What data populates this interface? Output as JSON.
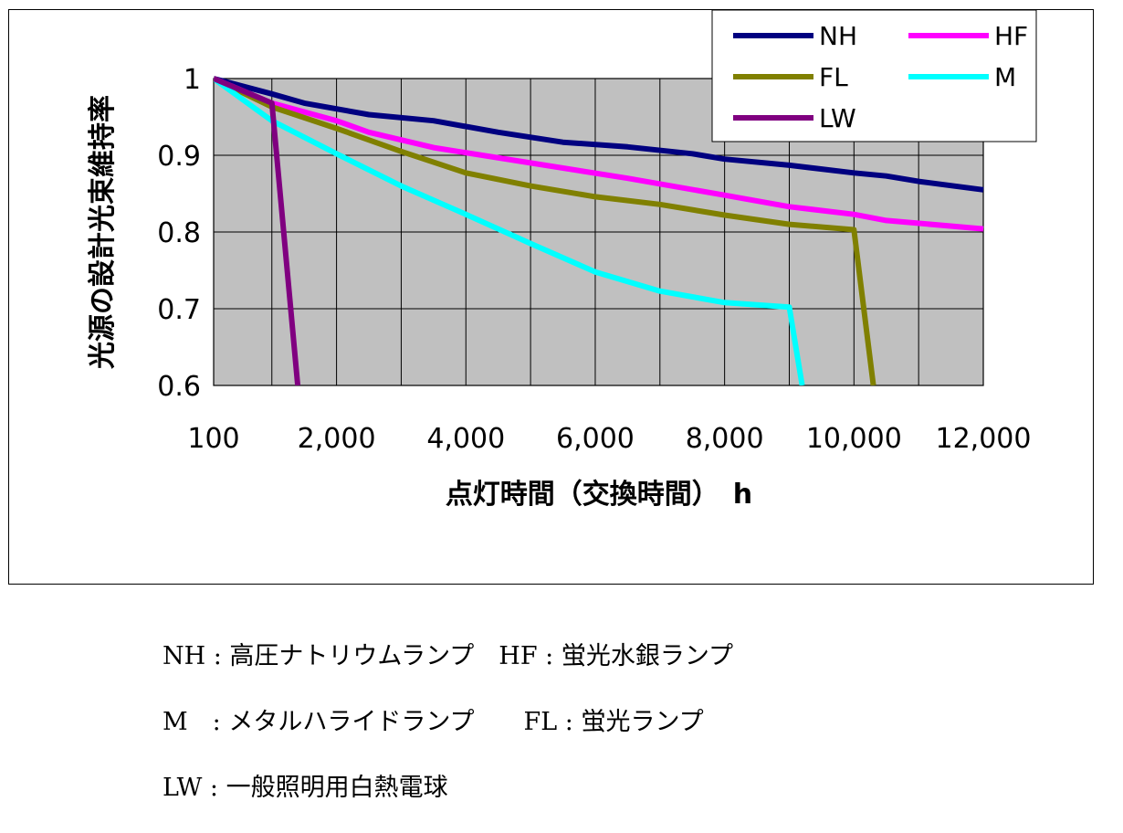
{
  "chart_data": {
    "type": "line",
    "title": "",
    "xlabel": "点灯時間（交換時間）　h",
    "ylabel": "光源の設計光束維持率",
    "xlim": [
      100,
      12000
    ],
    "ylim": [
      0.6,
      1.0
    ],
    "x_ticks": [
      100,
      2000,
      4000,
      6000,
      8000,
      10000,
      12000
    ],
    "x_tick_labels": [
      "100",
      "2,000",
      "4,000",
      "6,000",
      "8,000",
      "10,000",
      "12,000"
    ],
    "y_ticks": [
      0.6,
      0.7,
      0.8,
      0.9,
      1.0
    ],
    "y_tick_labels": [
      "0.6",
      "0.7",
      "0.8",
      "0.9",
      "1"
    ],
    "grid": true,
    "legend_position": "top-right",
    "series": [
      {
        "name": "NH",
        "color": "#000080",
        "x": [
          100,
          1000,
          1500,
          2500,
          3500,
          4500,
          5500,
          6500,
          7500,
          8000,
          9000,
          10000,
          10500,
          11000,
          12000
        ],
        "y": [
          1.0,
          0.98,
          0.968,
          0.953,
          0.945,
          0.93,
          0.917,
          0.911,
          0.902,
          0.895,
          0.887,
          0.877,
          0.873,
          0.866,
          0.855
        ]
      },
      {
        "name": "HF",
        "color": "#FF00FF",
        "x": [
          100,
          1000,
          2000,
          2500,
          3500,
          5000,
          6500,
          8000,
          9000,
          10000,
          10500,
          12000
        ],
        "y": [
          1.0,
          0.968,
          0.945,
          0.93,
          0.91,
          0.89,
          0.87,
          0.848,
          0.833,
          0.823,
          0.815,
          0.804
        ]
      },
      {
        "name": "FL",
        "color": "#808000",
        "x": [
          100,
          1000,
          2000,
          3000,
          4000,
          5000,
          6000,
          7000,
          8000,
          9000,
          10000,
          10300
        ],
        "y": [
          1.0,
          0.963,
          0.935,
          0.905,
          0.877,
          0.86,
          0.846,
          0.836,
          0.822,
          0.81,
          0.803,
          0.6
        ]
      },
      {
        "name": "M",
        "color": "#00FFFF",
        "x": [
          100,
          1000,
          2000,
          3000,
          4000,
          5000,
          6000,
          7000,
          8000,
          9000,
          9200
        ],
        "y": [
          1.0,
          0.945,
          0.902,
          0.86,
          0.823,
          0.785,
          0.748,
          0.723,
          0.708,
          0.702,
          0.6
        ]
      },
      {
        "name": "LW",
        "color": "#800080",
        "x": [
          100,
          1000,
          1400
        ],
        "y": [
          1.0,
          0.968,
          0.6
        ]
      }
    ]
  },
  "notes": [
    "NH : 高圧ナトリウムランプ　HF : 蛍光水銀ランプ",
    "M　: メタルハライドランプ　　FL : 蛍光ランプ",
    "LW : 一般照明用白熱電球"
  ]
}
